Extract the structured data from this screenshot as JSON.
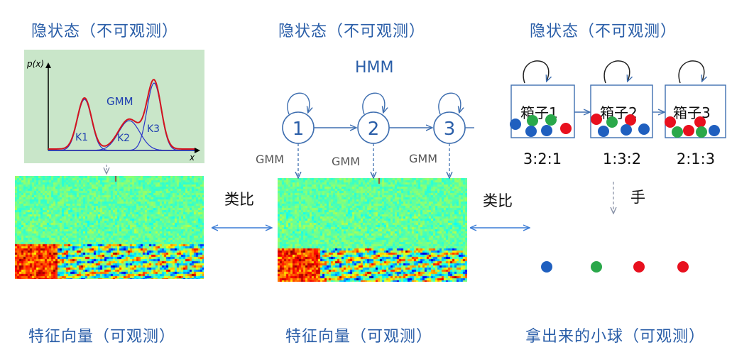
{
  "columns": [
    {
      "top_title": "隐状态（不可观测）",
      "bottom_title": "特征向量（可观测）"
    },
    {
      "top_title": "隐状态（不可观测）",
      "bottom_title": "特征向量（可观测）"
    },
    {
      "top_title": "隐状态（不可观测）",
      "bottom_title": "拿出来的小球（可观测）"
    }
  ],
  "gmm_plot": {
    "y_label": "p(x)",
    "x_label": "x",
    "mix_label": "GMM",
    "components": [
      "K1",
      "K2",
      "K3"
    ]
  },
  "analogy_label": "类比",
  "hmm": {
    "title": "HMM",
    "states": [
      "1",
      "2",
      "3"
    ],
    "emission_label": "GMM"
  },
  "boxes": [
    {
      "label": "箱子1",
      "ratio": "3:2:1"
    },
    {
      "label": "箱子2",
      "ratio": "1:3:2"
    },
    {
      "label": "箱子3",
      "ratio": "2:1:3"
    }
  ],
  "hand_label": "手",
  "drawn_balls": [
    "blue",
    "green",
    "red",
    "red"
  ],
  "colors": {
    "title": "#2a5ea8",
    "state": "#2a5ea8",
    "ball_blue": "#1f5fbf",
    "ball_green": "#2aa84a",
    "ball_red": "#e8101e",
    "gmm_bg": "#c9e6c9"
  }
}
